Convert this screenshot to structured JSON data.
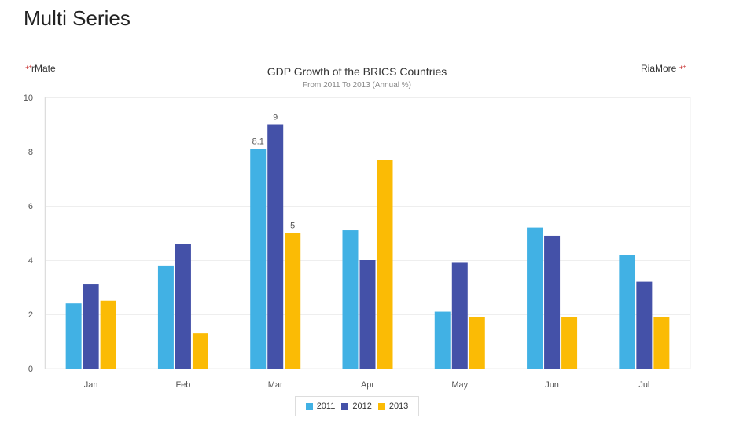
{
  "page": {
    "title": "Multi Series"
  },
  "branding": {
    "left_label": "rMate",
    "right_label": "RiaMore",
    "mark": "+⁺"
  },
  "chart_data": {
    "type": "bar",
    "title": "GDP Growth of the BRICS Countries",
    "subtitle": "From 2011 To 2013 (Annual %)",
    "categories": [
      "Jan",
      "Feb",
      "Mar",
      "Apr",
      "May",
      "Jun",
      "Jul"
    ],
    "series": [
      {
        "name": "2011",
        "color": "#41b1e4",
        "values": [
          2.4,
          3.8,
          8.1,
          5.1,
          2.1,
          5.2,
          4.2
        ]
      },
      {
        "name": "2012",
        "color": "#4451a8",
        "values": [
          3.1,
          4.6,
          9.0,
          4.0,
          3.9,
          4.9,
          3.2
        ]
      },
      {
        "name": "2013",
        "color": "#fbbb05",
        "values": [
          2.5,
          1.3,
          5.0,
          7.7,
          1.9,
          1.9,
          1.9
        ]
      }
    ],
    "ylim": [
      0,
      10
    ],
    "yticks": [
      0,
      2,
      4,
      6,
      8,
      10
    ],
    "data_labels": [
      {
        "category": "Mar",
        "series": "2011",
        "text": "8.1"
      },
      {
        "category": "Mar",
        "series": "2012",
        "text": "9"
      },
      {
        "category": "Mar",
        "series": "2013",
        "text": "5"
      }
    ],
    "grid": true,
    "legend_position": "bottom-center"
  }
}
